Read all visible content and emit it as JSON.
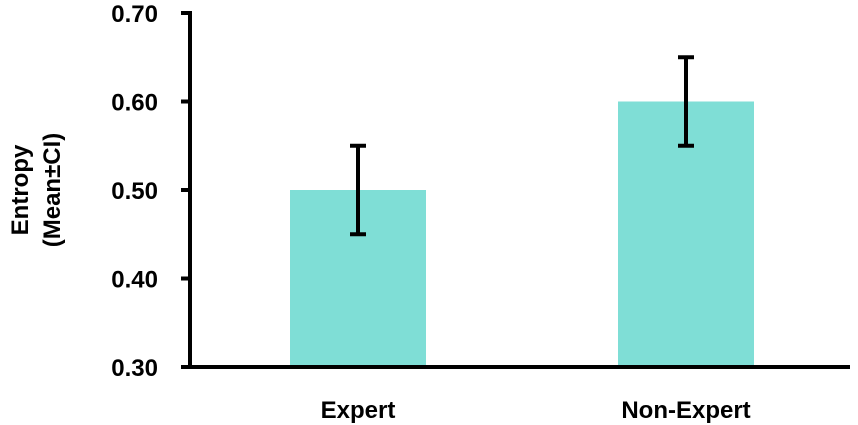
{
  "chart_data": {
    "type": "bar",
    "categories": [
      "Expert",
      "Non-Expert"
    ],
    "values": [
      0.5,
      0.6
    ],
    "error_low": [
      0.45,
      0.55
    ],
    "error_high": [
      0.55,
      0.65
    ],
    "ylabel_lines": [
      "Entropy",
      "(Mean±CI)"
    ],
    "ylim": [
      0.3,
      0.7
    ],
    "yticks": [
      "0.30",
      "0.40",
      "0.50",
      "0.60",
      "0.70"
    ],
    "bar_color": "#7fded6",
    "error_color": "#000000",
    "grid": false,
    "legend": "none"
  }
}
